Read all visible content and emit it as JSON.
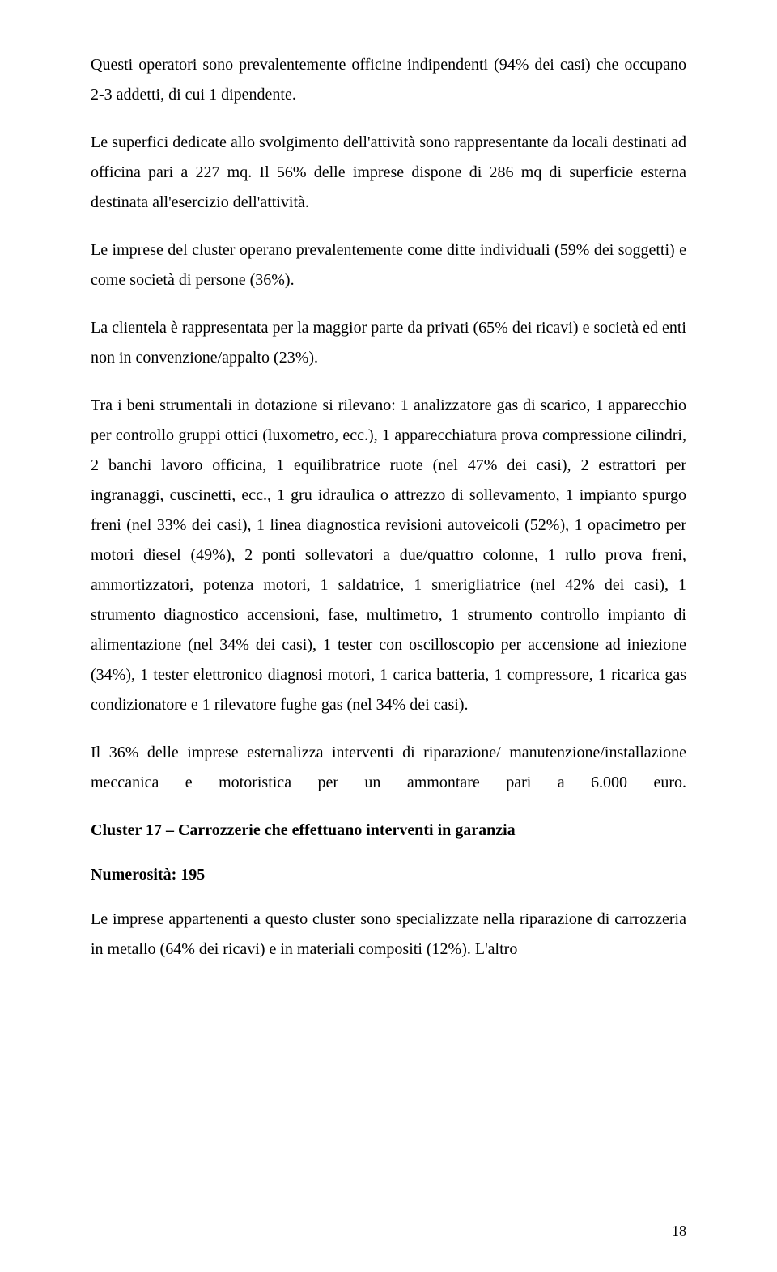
{
  "paragraphs": {
    "p1": "Questi operatori sono prevalentemente officine indipendenti (94% dei casi) che occupano 2-3 addetti, di cui 1 dipendente.",
    "p2": "Le superfici dedicate allo svolgimento dell'attività sono rappresentante da locali destinati ad officina pari a 227 mq. Il 56% delle imprese dispone di 286 mq di superficie esterna destinata all'esercizio dell'attività.",
    "p3": "Le imprese del cluster operano prevalentemente come ditte individuali (59% dei soggetti) e come società di persone (36%).",
    "p4": "La clientela è rappresentata per la maggior parte da privati (65% dei ricavi) e società ed enti non in convenzione/appalto (23%).",
    "p5": "Tra i beni strumentali in dotazione si rilevano: 1 analizzatore gas di scarico, 1 apparecchio per controllo gruppi ottici (luxometro, ecc.), 1 apparecchiatura prova compressione cilindri, 2 banchi lavoro officina, 1 equilibratrice ruote (nel 47% dei casi), 2 estrattori per ingranaggi, cuscinetti, ecc., 1 gru idraulica o attrezzo di sollevamento, 1 impianto spurgo freni (nel 33% dei casi), 1 linea diagnostica revisioni autoveicoli (52%), 1 opacimetro per motori diesel (49%), 2 ponti sollevatori a due/quattro colonne, 1 rullo prova freni, ammortizzatori, potenza motori, 1 saldatrice, 1 smerigliatrice (nel 42% dei casi), 1 strumento diagnostico accensioni, fase, multimetro, 1 strumento controllo impianto di alimentazione (nel 34% dei casi), 1 tester con oscilloscopio per accensione ad iniezione (34%), 1 tester elettronico diagnosi motori, 1 carica batteria, 1 compressore, 1 ricarica gas condizionatore e 1 rilevatore fughe gas (nel 34% dei casi).",
    "p6": "Il 36% delle imprese esternalizza interventi di riparazione/ manutenzione/installazione meccanica e motoristica per un ammontare pari a 6.000 euro.",
    "h1": "Cluster 17 – Carrozzerie che effettuano interventi in garanzia",
    "h2": "Numerosità: 195",
    "p7": "Le imprese appartenenti a questo cluster sono specializzate nella riparazione di carrozzeria in metallo (64% dei ricavi) e in materiali compositi (12%). L'altro"
  },
  "pageNumber": "18"
}
